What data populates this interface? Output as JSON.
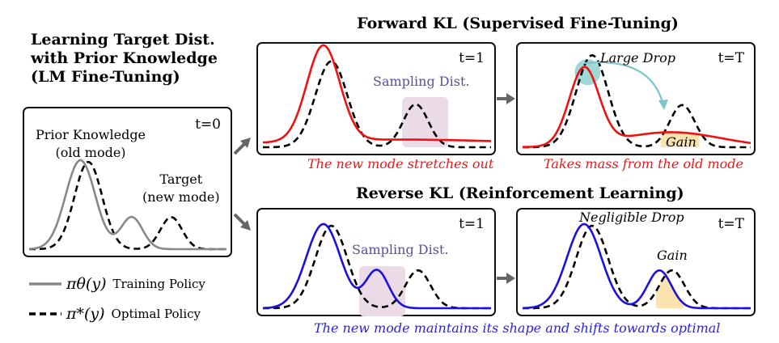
{
  "left": {
    "title": "Learning Target Dist.\nwith Prior Knowledge\n(LM Fine-Tuning)",
    "panel": {
      "time_label": "t=0",
      "prior_label": "Prior Knowledge\n(old mode)",
      "target_label": "Target\n(new mode)"
    },
    "legend": [
      {
        "style": "solid",
        "color": "#888888",
        "symbol": "πθ(y)",
        "label": "Training Policy"
      },
      {
        "style": "dashed",
        "color": "#000000",
        "symbol": "π*(y)",
        "label": "Optimal Policy"
      }
    ]
  },
  "forward": {
    "section_title": "Forward KL (Supervised Fine-Tuning)",
    "panel_t1": {
      "time_label": "t=1",
      "sampling_label": "Sampling Dist.",
      "caption": "The new mode stretches out"
    },
    "panel_tT": {
      "time_label": "t=T",
      "drop_label": "Large Drop",
      "gain_label": "Gain",
      "caption": "Takes mass from the old mode"
    }
  },
  "reverse": {
    "section_title": "Reverse KL (Reinforcement Learning)",
    "panel_t1": {
      "time_label": "t=1",
      "sampling_label": "Sampling Dist."
    },
    "panel_tT": {
      "time_label": "t=T",
      "drop_label": "Negligible Drop",
      "gain_label": "Gain"
    },
    "caption": "The new mode maintains its shape and shifts towards optimal"
  },
  "colors": {
    "training_t0": "#888888",
    "forward_policy": "#ee1111",
    "reverse_policy": "#1a10e0",
    "optimal": "#000000",
    "sampling_box": "#eadbe6",
    "drop_circle": "#8fd0d0",
    "drop_arrow": "#7fc4cc",
    "gain_fill": "#fbe3b0",
    "arrows": "#666666"
  },
  "chart_data": {
    "type": "line",
    "description": "Schematic mixture-of-Gaussians densities over y (x domain 0–10, arbitrary units)",
    "x_domain": [
      0,
      10
    ],
    "y_domain": [
      0,
      1
    ],
    "panels": [
      {
        "id": "t0",
        "series": [
          {
            "name": "πθ(y) Training Policy",
            "style": "solid",
            "components": [
              {
                "mu": 2.6,
                "sigma": 0.75,
                "amp": 1.0
              },
              {
                "mu": 5.2,
                "sigma": 0.55,
                "amp": 0.36
              }
            ]
          },
          {
            "name": "π*(y) Optimal Policy",
            "style": "dashed",
            "components": [
              {
                "mu": 3.0,
                "sigma": 0.7,
                "amp": 0.98
              },
              {
                "mu": 7.2,
                "sigma": 0.55,
                "amp": 0.36
              }
            ]
          }
        ]
      },
      {
        "id": "forward_t1",
        "series": [
          {
            "name": "πθ(y)",
            "style": "solid",
            "components": [
              {
                "mu": 2.65,
                "sigma": 0.72,
                "amp": 1.0
              },
              {
                "mu": 6.0,
                "sigma": 6.0,
                "amp": 0.08
              }
            ]
          },
          {
            "name": "π*(y)",
            "style": "dashed",
            "components": [
              {
                "mu": 3.0,
                "sigma": 0.7,
                "amp": 0.9
              },
              {
                "mu": 6.7,
                "sigma": 0.55,
                "amp": 0.45
              }
            ]
          }
        ]
      },
      {
        "id": "forward_tT",
        "series": [
          {
            "name": "πθ(y)",
            "style": "solid",
            "components": [
              {
                "mu": 2.7,
                "sigma": 0.65,
                "amp": 0.82
              },
              {
                "mu": 6.5,
                "sigma": 2.2,
                "amp": 0.16
              }
            ]
          },
          {
            "name": "π*(y)",
            "style": "dashed",
            "components": [
              {
                "mu": 3.05,
                "sigma": 0.7,
                "amp": 0.98
              },
              {
                "mu": 7.0,
                "sigma": 0.55,
                "amp": 0.45
              }
            ]
          }
        ]
      },
      {
        "id": "reverse_t1",
        "series": [
          {
            "name": "πθ(y)",
            "style": "solid",
            "components": [
              {
                "mu": 2.65,
                "sigma": 0.75,
                "amp": 1.0
              },
              {
                "mu": 5.0,
                "sigma": 0.5,
                "amp": 0.45
              }
            ]
          },
          {
            "name": "π*(y)",
            "style": "dashed",
            "components": [
              {
                "mu": 3.0,
                "sigma": 0.7,
                "amp": 0.98
              },
              {
                "mu": 6.8,
                "sigma": 0.55,
                "amp": 0.45
              }
            ]
          }
        ]
      },
      {
        "id": "reverse_tT",
        "series": [
          {
            "name": "πθ(y)",
            "style": "solid",
            "components": [
              {
                "mu": 2.7,
                "sigma": 0.75,
                "amp": 1.0
              },
              {
                "mu": 6.0,
                "sigma": 0.52,
                "amp": 0.45
              }
            ]
          },
          {
            "name": "π*(y)",
            "style": "dashed",
            "components": [
              {
                "mu": 3.05,
                "sigma": 0.7,
                "amp": 0.98
              },
              {
                "mu": 6.55,
                "sigma": 0.55,
                "amp": 0.45
              }
            ]
          }
        ]
      }
    ]
  }
}
